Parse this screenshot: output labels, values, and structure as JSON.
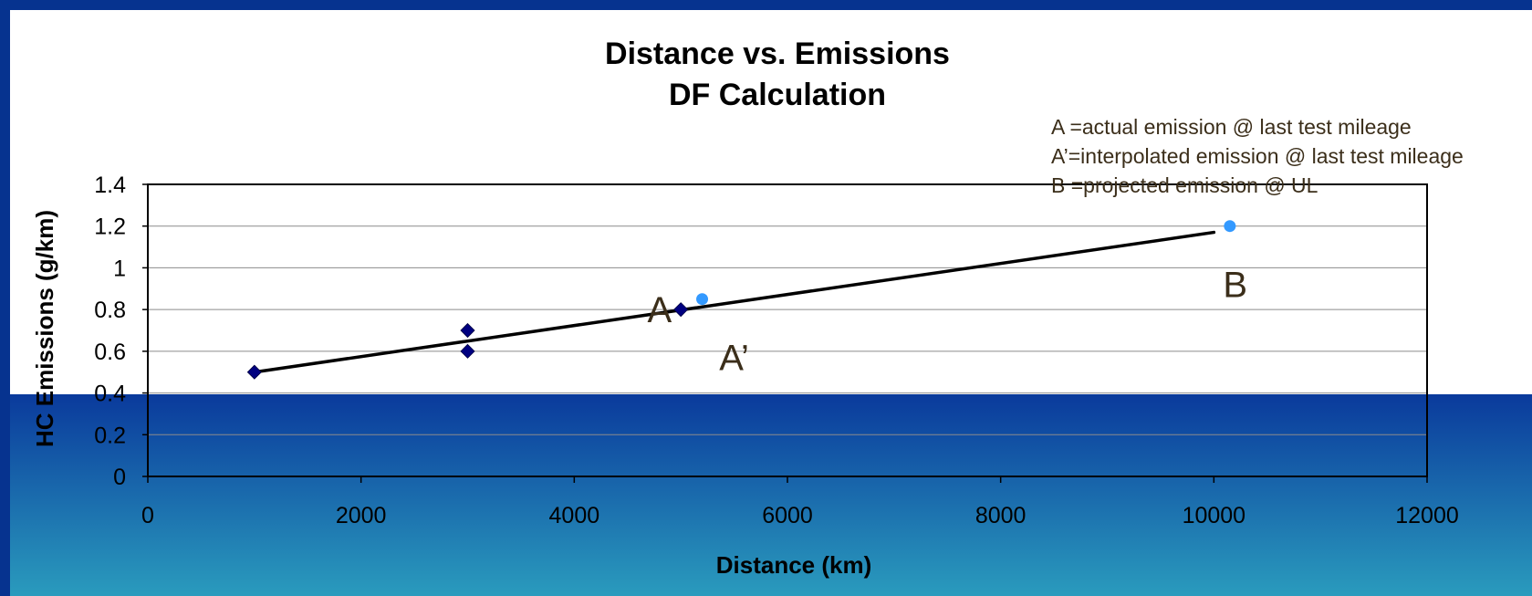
{
  "chart_data": {
    "type": "scatter",
    "title": "Distance vs. Emissions",
    "subtitle": "DF Calculation",
    "xlabel": "Distance (km)",
    "ylabel": "HC Emissions (g/km)",
    "xlim": [
      0,
      12000
    ],
    "ylim": [
      0,
      1.4
    ],
    "x_ticks": [
      "0",
      "2000",
      "4000",
      "6000",
      "8000",
      "10000",
      "12000"
    ],
    "y_ticks": [
      "0",
      "0.2",
      "0.4",
      "0.6",
      "0.8",
      "1",
      "1.2",
      "1.4"
    ],
    "grid": "horizontal",
    "series": [
      {
        "marker": "diamond",
        "color": "#000080",
        "points": [
          {
            "x": 1000,
            "y": 0.5
          },
          {
            "x": 3000,
            "y": 0.7
          },
          {
            "x": 3000,
            "y": 0.6
          },
          {
            "x": 5000,
            "y": 0.8
          }
        ]
      },
      {
        "marker": "circle",
        "color": "#3399ff",
        "points": [
          {
            "x": 5200,
            "y": 0.85
          },
          {
            "x": 10150,
            "y": 1.2
          }
        ]
      }
    ],
    "trendline": {
      "color": "#000000",
      "from": {
        "x": 1000,
        "y": 0.5
      },
      "to": {
        "x": 10000,
        "y": 1.17
      }
    },
    "point_labels": [
      {
        "text": "A",
        "x": 4800,
        "y": 0.8
      },
      {
        "text": "A’",
        "x": 5500,
        "y": 0.57
      },
      {
        "text": "B",
        "x": 10200,
        "y": 0.92
      }
    ],
    "annotations": [
      "A =actual emission @ last test mileage",
      "A’=interpolated emission @ last test mileage",
      "B =projected emission @ UL"
    ]
  }
}
